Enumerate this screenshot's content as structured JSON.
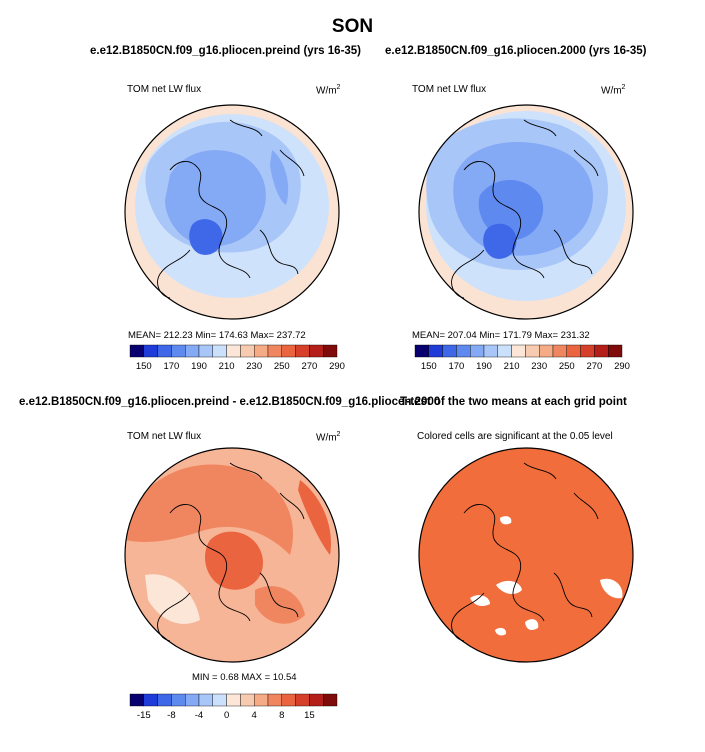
{
  "title": "SON",
  "panel1": {
    "case": "e.e12.B1850CN.f09_g16.pliocen.preind (yrs 16-35)",
    "variable": "TOM net LW flux",
    "units": "W/m",
    "units_sup": "2",
    "stats": "MEAN= 212.23  Min= 174.63  Max= 237.72",
    "colorbar": {
      "colors": [
        "#08006e",
        "#1f3cd9",
        "#3e68e8",
        "#5e8af0",
        "#84a9f5",
        "#a9c6f8",
        "#cbe0fb",
        "#fbe6d8",
        "#f7cbb0",
        "#f5ab86",
        "#f08660",
        "#e9643f",
        "#d6402a",
        "#b51f1a",
        "#7f0b0b"
      ],
      "ticks": [
        "150",
        "170",
        "190",
        "210",
        "230",
        "250",
        "270",
        "290"
      ]
    }
  },
  "panel2": {
    "case": "e.e12.B1850CN.f09_g16.pliocen.2000 (yrs 16-35)",
    "variable": "TOM net LW flux",
    "units": "W/m",
    "units_sup": "2",
    "stats": "MEAN= 207.04  Min= 171.79  Max= 231.32"
  },
  "panel3": {
    "case": "e.e12.B1850CN.f09_g16.pliocen.preind - e.e12.B1850CN.f09_g16.pliocen.2000",
    "variable": "TOM net LW flux",
    "units": "W/m",
    "units_sup": "2",
    "stats": "MIN =    0.68  MAX =   10.54",
    "colorbar": {
      "colors": [
        "#08006e",
        "#1f3cd9",
        "#3e68e8",
        "#5e8af0",
        "#84a9f5",
        "#a9c6f8",
        "#cbe0fb",
        "#fbe6d8",
        "#f7cbb0",
        "#f5ab86",
        "#f08660",
        "#e9643f",
        "#d6402a",
        "#b51f1a",
        "#7f0b0b"
      ],
      "ticks": [
        "-15",
        "-8",
        "-4",
        "0",
        "4",
        "8",
        "15"
      ]
    }
  },
  "panel4": {
    "case": "T-test of the two means at each grid point",
    "note": "Colored cells are significant at the 0.05 level"
  },
  "map_colors": {
    "outside": "#fbe3d3",
    "ocean_light": "#cfe2fb",
    "ocean_mid": "#a9c6f8",
    "land_low": "#84a9f5",
    "land_mid": "#5e8af0",
    "land_deep": "#3e68e8",
    "diff_base": "#f7b597",
    "diff_mid": "#f08660",
    "diff_high": "#e9643f",
    "diff_pale": "#fbe6d8",
    "sig": "#f26d3c"
  }
}
